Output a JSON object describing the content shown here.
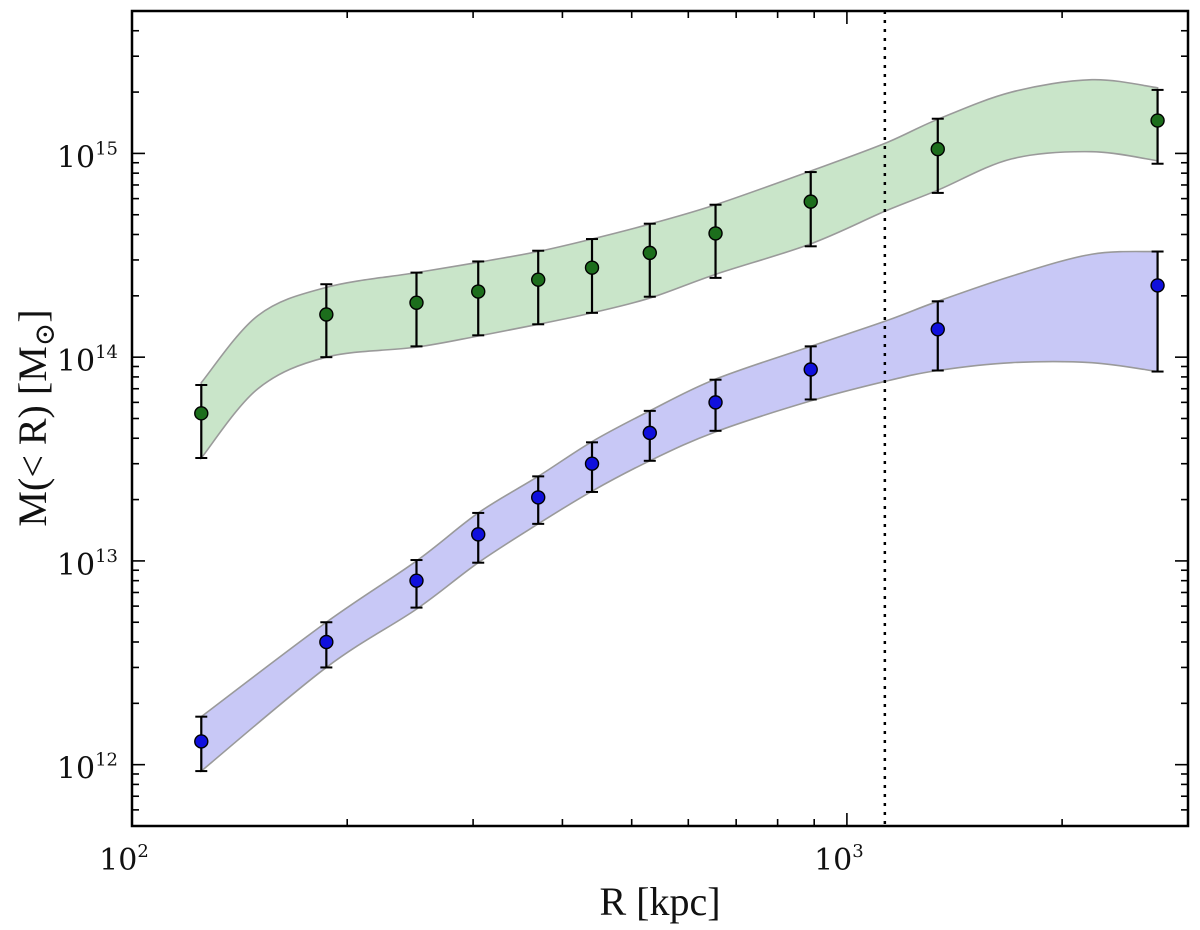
{
  "chart_data": {
    "type": "scatter",
    "xscale": "log",
    "yscale": "log",
    "xlim": [
      100,
      3000
    ],
    "ylim": [
      500000000000.0,
      5000000000000000.0
    ],
    "xlabel": "R [kpc]",
    "ylabel_main": "M(< R) [M",
    "ylabel_sub": "⊙",
    "ylabel_close": "]",
    "x_ticks": [
      {
        "value": 100,
        "base": "10",
        "exp": "2"
      },
      {
        "value": 1000,
        "base": "10",
        "exp": "3"
      }
    ],
    "y_ticks": [
      {
        "value": 1000000000000.0,
        "base": "10",
        "exp": "12"
      },
      {
        "value": 10000000000000.0,
        "base": "10",
        "exp": "13"
      },
      {
        "value": 100000000000000.0,
        "base": "10",
        "exp": "14"
      },
      {
        "value": 1000000000000000.0,
        "base": "10",
        "exp": "15"
      }
    ],
    "vline": {
      "x": 1130,
      "style": "dotted",
      "color": "#000000"
    },
    "series": [
      {
        "name": "green",
        "marker_color": "#1c6e1c",
        "band_color": "#c9e5c9",
        "band_edge": "#9a9a9a",
        "x": [
          125,
          187,
          250,
          305,
          370,
          440,
          530,
          655,
          890,
          1340,
          2720
        ],
        "y": [
          53000000000000.0,
          162000000000000.0,
          185000000000000.0,
          210000000000000.0,
          240000000000000.0,
          275000000000000.0,
          325000000000000.0,
          405000000000000.0,
          580000000000000.0,
          1050000000000000.0,
          1450000000000000.0
        ],
        "err_lo": [
          32000000000000.0,
          100000000000000.0,
          113000000000000.0,
          128000000000000.0,
          145000000000000.0,
          165000000000000.0,
          198000000000000.0,
          245000000000000.0,
          350000000000000.0,
          640000000000000.0,
          890000000000000.0
        ],
        "err_hi": [
          73000000000000.0,
          228000000000000.0,
          260000000000000.0,
          295000000000000.0,
          333000000000000.0,
          380000000000000.0,
          452000000000000.0,
          560000000000000.0,
          810000000000000.0,
          1480000000000000.0,
          2050000000000000.0
        ],
        "band_x": [
          125,
          150,
          187,
          250,
          305,
          370,
          440,
          530,
          655,
          890,
          1130,
          1340,
          1700,
          2200,
          2720
        ],
        "band_lo": [
          32000000000000.0,
          70000000000000.0,
          100000000000000.0,
          112000000000000.0,
          127000000000000.0,
          145000000000000.0,
          165000000000000.0,
          195000000000000.0,
          255000000000000.0,
          360000000000000.0,
          520000000000000.0,
          660000000000000.0,
          940000000000000.0,
          1020000000000000.0,
          920000000000000.0
        ],
        "band_hi": [
          75000000000000.0,
          160000000000000.0,
          220000000000000.0,
          260000000000000.0,
          292000000000000.0,
          330000000000000.0,
          380000000000000.0,
          450000000000000.0,
          560000000000000.0,
          820000000000000.0,
          1120000000000000.0,
          1470000000000000.0,
          2000000000000000.0,
          2300000000000000.0,
          2100000000000000.0
        ]
      },
      {
        "name": "blue",
        "marker_color": "#1010dd",
        "band_color": "#c8c8f6",
        "band_edge": "#9a9a9a",
        "x": [
          125,
          187,
          250,
          305,
          370,
          440,
          530,
          655,
          890,
          1340,
          2720
        ],
        "y": [
          1300000000000.0,
          4000000000000.0,
          8000000000000.0,
          13500000000000.0,
          20500000000000.0,
          30000000000000.0,
          42500000000000.0,
          60000000000000.0,
          87000000000000.0,
          137000000000000.0,
          225000000000000.0
        ],
        "err_lo": [
          930000000000.0,
          3000000000000.0,
          5900000000000.0,
          9800000000000.0,
          15200000000000.0,
          21800000000000.0,
          31000000000000.0,
          43500000000000.0,
          62000000000000.0,
          86000000000000.0,
          85000000000000.0
        ],
        "err_hi": [
          1720000000000.0,
          5000000000000.0,
          10100000000000.0,
          17200000000000.0,
          26000000000000.0,
          38200000000000.0,
          54500000000000.0,
          77500000000000.0,
          113000000000000.0,
          188000000000000.0,
          330000000000000.0
        ],
        "band_x": [
          125,
          187,
          250,
          305,
          370,
          440,
          530,
          655,
          890,
          1130,
          1340,
          1700,
          2200,
          2720
        ],
        "band_lo": [
          930000000000.0,
          3000000000000.0,
          5800000000000.0,
          9800000000000.0,
          15200000000000.0,
          22000000000000.0,
          31000000000000.0,
          43000000000000.0,
          61000000000000.0,
          76000000000000.0,
          86000000000000.0,
          94000000000000.0,
          94000000000000.0,
          85000000000000.0
        ],
        "band_hi": [
          1720000000000.0,
          5000000000000.0,
          10000000000000.0,
          17200000000000.0,
          26000000000000.0,
          38500000000000.0,
          54500000000000.0,
          78000000000000.0,
          113000000000000.0,
          150000000000000.0,
          188000000000000.0,
          250000000000000.0,
          320000000000000.0,
          330000000000000.0
        ]
      }
    ]
  }
}
